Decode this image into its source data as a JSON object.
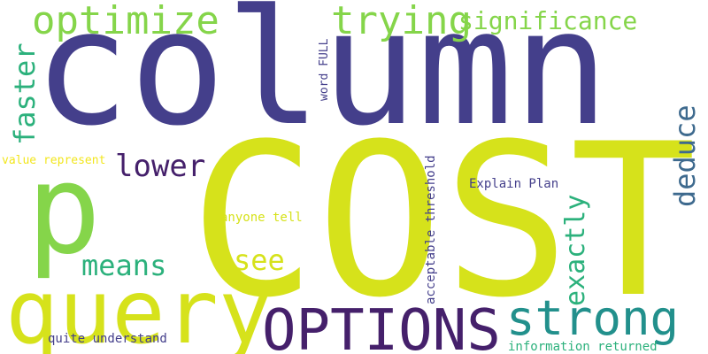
{
  "palette": {
    "background": "#ffffff",
    "navy": "#443f8b",
    "lime": "#d6e21b",
    "green": "#85d54a",
    "teal": "#22908c",
    "seafoam": "#2cb17c",
    "purple": "#45206b",
    "blue": "#3e6a8e",
    "yellow": "#f2e61d"
  },
  "words": {
    "column": "column",
    "cost": "COST",
    "p": "p",
    "query": "query",
    "options": "OPTIONS",
    "strong": "strong",
    "optimize": "optimize",
    "trying": "trying",
    "significance": "significance",
    "faster": "faster",
    "lower": "lower",
    "means": "means",
    "see": "see",
    "exactly": "exactly",
    "deduce": "deduce",
    "word_full": "word FULL",
    "value_represent": "value represent",
    "explain_plan": "Explain Plan",
    "anyone_tell": "anyone tell",
    "acceptable_threshold": "acceptable threshold",
    "quite_understand": "quite understand",
    "information_returned": "information returned"
  }
}
